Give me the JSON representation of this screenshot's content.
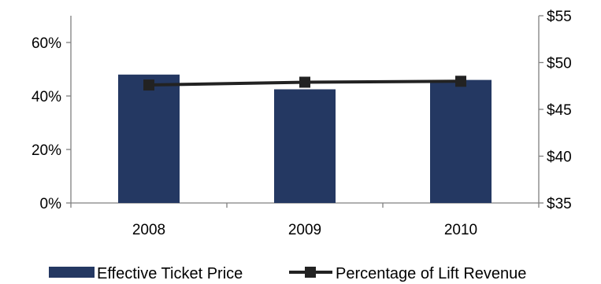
{
  "chart_data": {
    "type": "bar+line",
    "categories": [
      "2008",
      "2009",
      "2010"
    ],
    "series": [
      {
        "name": "Effective Ticket Price",
        "type": "bar",
        "axis": "left",
        "values": [
          48,
          42.5,
          46
        ],
        "color": "#243862"
      },
      {
        "name": "Percentage of Lift Revenue",
        "type": "line",
        "axis": "right",
        "values": [
          47.6,
          47.9,
          48.0
        ],
        "color": "#222222"
      }
    ],
    "y_left": {
      "min": 0,
      "max": 70,
      "ticks": [
        0,
        20,
        40,
        60
      ],
      "tick_labels": [
        "0%",
        "20%",
        "40%",
        "60%"
      ]
    },
    "y_right": {
      "min": 35,
      "max": 55,
      "ticks": [
        35,
        40,
        45,
        50,
        55
      ],
      "tick_labels": [
        "$35",
        "$40",
        "$45",
        "$50",
        "$55"
      ]
    },
    "grid": false,
    "legend": "bottom"
  }
}
